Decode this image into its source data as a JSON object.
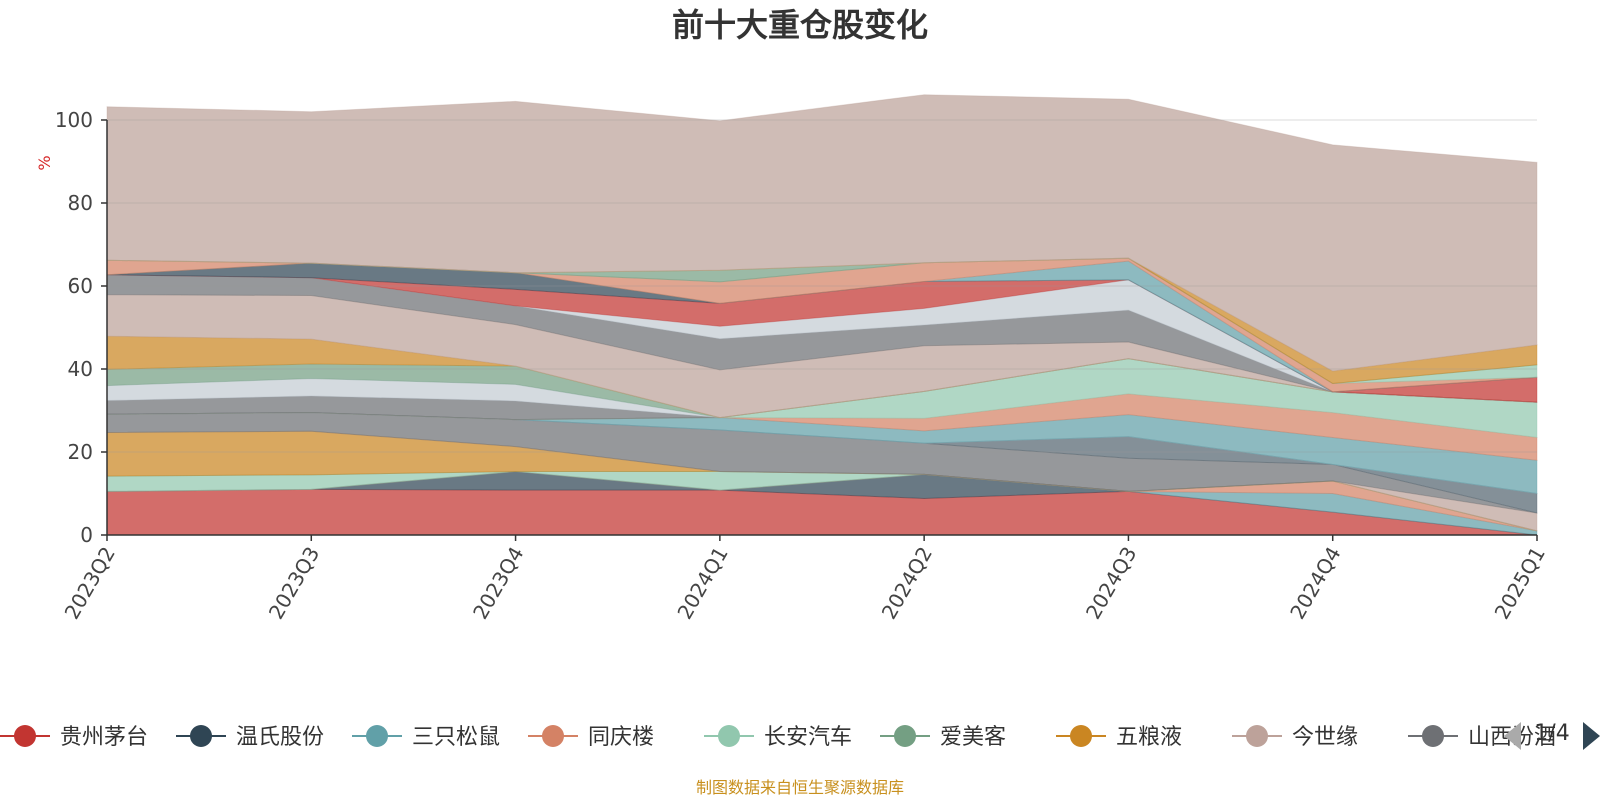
{
  "chart_data": {
    "type": "area",
    "title": "前十大重仓股变化",
    "ylabel": "%",
    "ylim": [
      0,
      100
    ],
    "yticks": [
      0,
      20,
      40,
      60,
      80,
      100
    ],
    "grid": true,
    "stacked": true,
    "categories": [
      "2023Q2",
      "2023Q3",
      "2023Q4",
      "2024Q1",
      "2024Q2",
      "2024Q3",
      "2024Q4",
      "2025Q1"
    ],
    "series": [
      {
        "name": "贵州茅台",
        "color": "#c23531",
        "values": [
          10.5,
          11.0,
          10.8,
          10.8,
          8.8,
          10.5,
          5.5,
          0.0
        ]
      },
      {
        "name": "温氏股份",
        "color": "#2f4554",
        "values": [
          0.0,
          0.0,
          4.5,
          0.0,
          5.8,
          0.0,
          0.0,
          0.0
        ]
      },
      {
        "name": "三只松鼠",
        "color": "#61a0a8",
        "values": [
          0.0,
          0.0,
          0.0,
          0.0,
          0.0,
          0.0,
          4.5,
          1.0
        ]
      },
      {
        "name": "同庆楼",
        "color": "#d48265",
        "values": [
          0.0,
          0.0,
          0.0,
          0.0,
          0.0,
          0.0,
          3.0,
          0.0
        ]
      },
      {
        "name": "长安汽车",
        "color": "#91c7ae",
        "values": [
          3.7,
          3.5,
          0.0,
          4.5,
          0.0,
          0.0,
          0.0,
          0.0
        ]
      },
      {
        "name": "爱美客",
        "color": "#749f83",
        "values": [
          0.0,
          0.0,
          0.0,
          0.0,
          0.0,
          0.0,
          0.0,
          0.0
        ]
      },
      {
        "name": "五粮液",
        "color": "#ca8622",
        "values": [
          10.5,
          10.5,
          6.0,
          0.0,
          0.0,
          0.0,
          0.0,
          0.0
        ]
      },
      {
        "name": "今世缘",
        "color": "#bda29a",
        "values": [
          0.0,
          0.0,
          0.0,
          0.0,
          0.0,
          0.0,
          0.0,
          4.3
        ]
      },
      {
        "name": "山西汾酒",
        "color": "#6e7074",
        "values": [
          4.4,
          4.5,
          6.5,
          10.0,
          7.5,
          8.0,
          4.0,
          0.0
        ]
      },
      {
        "name": "",
        "color": "#546570",
        "values": [
          0.0,
          0.0,
          0.0,
          0.0,
          0.0,
          5.2,
          0.0,
          4.7
        ]
      },
      {
        "name": "",
        "color": "#c4ccd3",
        "values": [
          0.0,
          0.0,
          0.0,
          0.0,
          0.0,
          0.0,
          0.0,
          0.0
        ]
      },
      {
        "name": "",
        "color": "#61a0a8",
        "values": [
          0.0,
          0.0,
          0.0,
          3.0,
          3.0,
          5.3,
          6.5,
          8.0
        ]
      },
      {
        "name": "",
        "color": "#d48265",
        "values": [
          0.0,
          0.0,
          0.0,
          0.0,
          3.0,
          5.0,
          6.0,
          5.5
        ]
      },
      {
        "name": "",
        "color": "#91c7ae",
        "values": [
          0.0,
          0.0,
          0.0,
          0.0,
          6.5,
          8.5,
          5.0,
          8.5
        ]
      },
      {
        "name": "",
        "color": "#6e7074",
        "values": [
          3.3,
          4.0,
          4.5,
          0.0,
          0.0,
          0.0,
          0.0,
          0.0
        ]
      },
      {
        "name": "",
        "color": "#c4ccd3",
        "values": [
          3.6,
          4.2,
          4.0,
          0.0,
          0.0,
          0.0,
          0.0,
          0.0
        ]
      },
      {
        "name": "",
        "color": "#749f83",
        "values": [
          3.9,
          3.5,
          4.4,
          0.0,
          0.0,
          0.0,
          0.0,
          0.0
        ]
      },
      {
        "name": "",
        "color": "#ca8622",
        "values": [
          8.0,
          6.0,
          0.0,
          0.0,
          0.0,
          0.0,
          0.0,
          0.0
        ]
      },
      {
        "name": "",
        "color": "#bda29a",
        "values": [
          10.0,
          10.5,
          10.0,
          11.5,
          11.0,
          4.0,
          0.0,
          0.0
        ]
      },
      {
        "name": "",
        "color": "#6e7074",
        "values": [
          4.8,
          4.3,
          4.5,
          7.5,
          5.0,
          7.7,
          0.0,
          0.0
        ]
      },
      {
        "name": "",
        "color": "#c4ccd3",
        "values": [
          0.0,
          0.0,
          0.0,
          3.0,
          4.0,
          7.3,
          0.0,
          0.0
        ]
      },
      {
        "name": "",
        "color": "#c23531",
        "values": [
          0.0,
          0.0,
          4.0,
          5.5,
          6.5,
          0.0,
          0.0,
          6.0
        ]
      },
      {
        "name": "",
        "color": "#2f4554",
        "values": [
          0.0,
          3.5,
          4.0,
          0.0,
          0.0,
          0.0,
          0.0,
          0.0
        ]
      },
      {
        "name": "",
        "color": "#61a0a8",
        "values": [
          0.0,
          0.0,
          0.0,
          0.0,
          0.0,
          4.5,
          0.0,
          0.0
        ]
      },
      {
        "name": "",
        "color": "#d48265",
        "values": [
          3.5,
          0.0,
          0.0,
          5.2,
          4.5,
          0.7,
          2.0,
          0.0
        ]
      },
      {
        "name": "",
        "color": "#91c7ae",
        "values": [
          0.0,
          0.0,
          0.0,
          0.0,
          0.0,
          0.0,
          0.0,
          3.0
        ]
      },
      {
        "name": "",
        "color": "#749f83",
        "values": [
          0.0,
          0.0,
          0.0,
          2.8,
          0.0,
          0.0,
          0.0,
          0.0
        ]
      },
      {
        "name": "",
        "color": "#ca8622",
        "values": [
          0.0,
          0.0,
          0.0,
          0.0,
          0.0,
          0.0,
          3.0,
          4.8
        ]
      },
      {
        "name": "",
        "color": "#bda29a",
        "values": [
          37.0,
          36.5,
          41.3,
          36.0,
          40.5,
          38.3,
          54.5,
          44.0
        ]
      }
    ]
  },
  "legend": {
    "items": [
      {
        "label": "贵州茅台",
        "color": "#c23531"
      },
      {
        "label": "温氏股份",
        "color": "#2f4554"
      },
      {
        "label": "三只松鼠",
        "color": "#61a0a8"
      },
      {
        "label": "同庆楼",
        "color": "#d48265"
      },
      {
        "label": "长安汽车",
        "color": "#91c7ae"
      },
      {
        "label": "爱美客",
        "color": "#749f83"
      },
      {
        "label": "五粮液",
        "color": "#ca8622"
      },
      {
        "label": "今世缘",
        "color": "#bda29a"
      },
      {
        "label": "山西汾酒",
        "color": "#6e7074"
      }
    ],
    "page": "1/4"
  },
  "source_note": "制图数据来自恒生聚源数据库"
}
